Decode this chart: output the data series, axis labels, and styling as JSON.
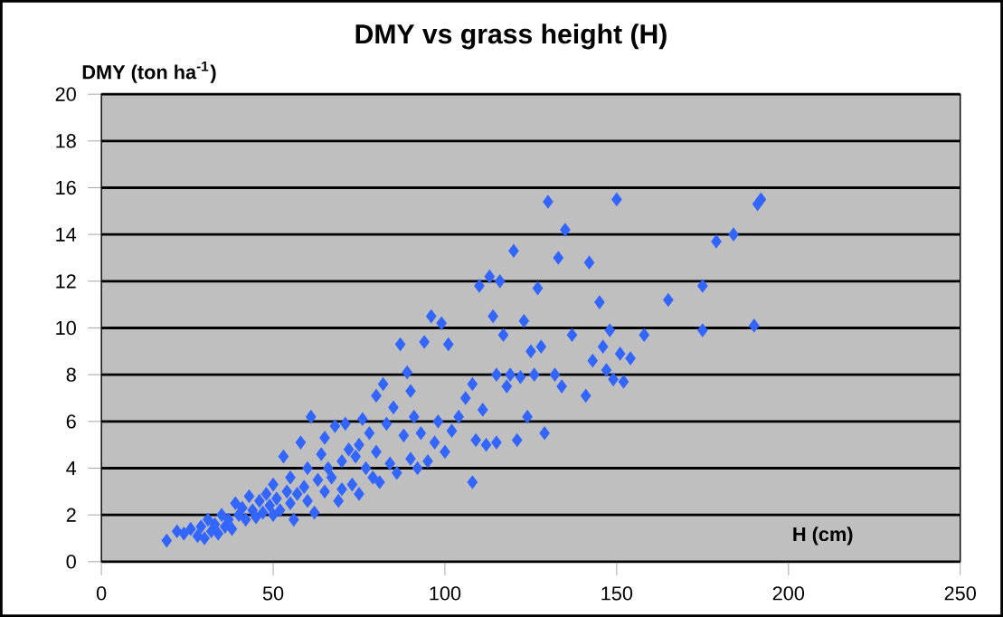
{
  "chart_data": {
    "type": "scatter",
    "title": "DMY vs grass height (H)",
    "xlabel": "H (cm)",
    "ylabel": "DMY (ton ha$^{-1}$)",
    "xlim": [
      0,
      250
    ],
    "xticks": [
      0,
      50,
      100,
      150,
      200,
      250
    ],
    "ylim": [
      0,
      20
    ],
    "yticks": [
      0,
      2,
      4,
      6,
      8,
      10,
      12,
      14,
      16,
      18,
      20
    ],
    "grid": "y",
    "marker": "diamond",
    "series": [
      {
        "color": "#3366ff",
        "x": [
          19,
          22,
          24,
          26,
          28,
          29,
          30,
          31,
          32,
          33,
          34,
          35,
          36,
          37,
          38,
          39,
          40,
          41,
          42,
          43,
          44,
          45,
          46,
          47,
          48,
          49,
          50,
          50,
          51,
          52,
          53,
          54,
          55,
          55,
          56,
          57,
          58,
          59,
          60,
          60,
          61,
          62,
          63,
          64,
          65,
          65,
          66,
          67,
          68,
          69,
          70,
          70,
          71,
          72,
          73,
          74,
          75,
          75,
          76,
          77,
          78,
          79,
          80,
          80,
          81,
          82,
          83,
          84,
          85,
          86,
          87,
          88,
          89,
          90,
          90,
          91,
          92,
          93,
          94,
          95,
          96,
          97,
          98,
          99,
          100,
          101,
          102,
          104,
          106,
          108,
          108,
          109,
          110,
          111,
          112,
          113,
          114,
          115,
          115,
          116,
          117,
          118,
          119,
          120,
          121,
          122,
          123,
          124,
          125,
          126,
          127,
          128,
          129,
          130,
          132,
          133,
          134,
          135,
          137,
          141,
          142,
          143,
          145,
          146,
          147,
          148,
          149,
          150,
          151,
          152,
          154,
          158,
          165,
          175,
          175,
          179,
          184,
          190,
          191,
          192
        ],
        "values": [
          0.9,
          1.3,
          1.2,
          1.4,
          1.1,
          1.5,
          1.0,
          1.8,
          1.3,
          1.6,
          1.2,
          2.0,
          1.5,
          1.8,
          1.4,
          2.5,
          2.0,
          2.3,
          1.8,
          2.8,
          2.2,
          1.9,
          2.6,
          2.1,
          2.9,
          2.4,
          3.3,
          2.0,
          2.7,
          2.2,
          4.5,
          3.0,
          2.5,
          3.6,
          1.8,
          2.9,
          5.1,
          3.2,
          4.0,
          2.6,
          6.2,
          2.1,
          3.5,
          4.6,
          3.0,
          5.3,
          4.0,
          3.6,
          5.8,
          2.6,
          4.3,
          3.1,
          5.9,
          4.8,
          3.3,
          4.5,
          5.0,
          2.9,
          6.1,
          4.0,
          5.5,
          3.6,
          7.1,
          4.7,
          3.4,
          7.6,
          5.9,
          4.2,
          6.6,
          3.8,
          9.3,
          5.4,
          8.1,
          7.3,
          4.4,
          6.2,
          4.0,
          5.5,
          9.4,
          4.3,
          10.5,
          5.1,
          6.0,
          10.2,
          4.7,
          9.3,
          5.6,
          6.2,
          7.0,
          3.4,
          7.6,
          5.2,
          11.8,
          6.5,
          5.0,
          12.2,
          10.5,
          8.0,
          5.1,
          12.0,
          9.7,
          7.5,
          8.0,
          13.3,
          5.2,
          7.9,
          10.3,
          6.2,
          9.0,
          8.0,
          11.7,
          9.2,
          5.5,
          15.4,
          8.0,
          13.0,
          7.5,
          14.2,
          9.7,
          7.1,
          12.8,
          8.6,
          11.1,
          9.2,
          8.2,
          9.9,
          7.8,
          15.5,
          8.9,
          7.7,
          8.7,
          9.7,
          11.2,
          11.8,
          9.9,
          13.7,
          14.0,
          10.1,
          15.3,
          15.5
        ]
      }
    ]
  }
}
